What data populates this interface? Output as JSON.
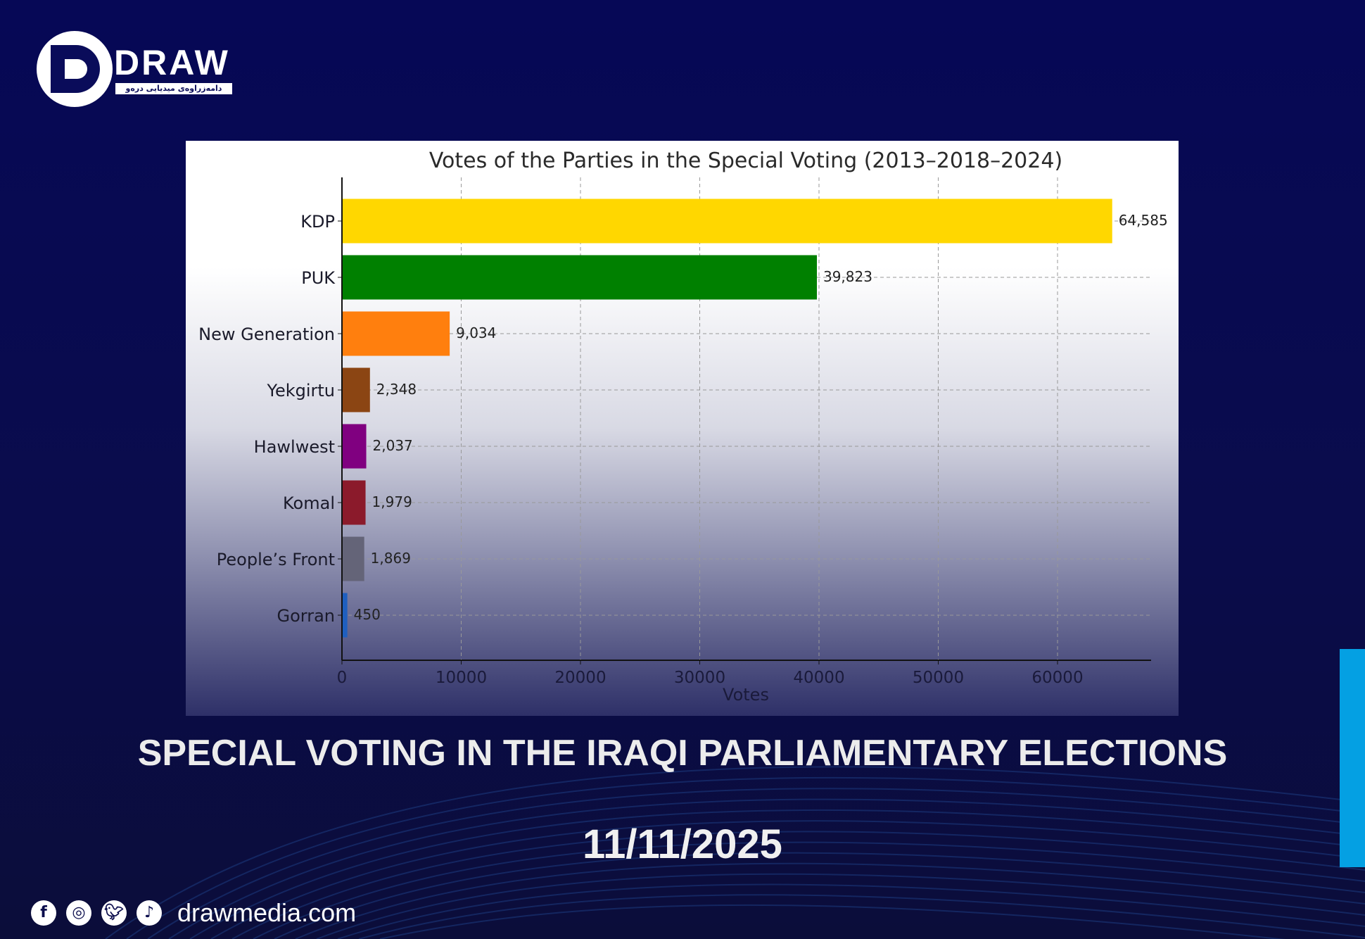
{
  "brand": {
    "logo_text": "DRAW",
    "logo_subtitle": "دامەزراوەی میدیایی درەو",
    "website": "drawmedia.com",
    "social_icons": [
      "facebook-icon",
      "instagram-icon",
      "twitter-icon",
      "tiktok-icon"
    ]
  },
  "headline": "SPECIAL VOTING IN THE IRAQI PARLIAMENTARY ELECTIONS",
  "date": "11/11/2025",
  "colors": {
    "background": "#060856",
    "accent": "#04a0e3"
  },
  "chart_data": {
    "type": "bar",
    "orientation": "horizontal",
    "title": "Votes of the Parties in the Special Voting (2013–2018–2024)",
    "xlabel": "Votes",
    "ylabel": "",
    "xlim": [
      0,
      68000
    ],
    "xticks": [
      "0",
      "10000",
      "20000",
      "30000",
      "40000",
      "50000",
      "60000"
    ],
    "grid": true,
    "categories": [
      "KDP",
      "PUK",
      "New Generation",
      "Yekgirtu",
      "Hawlwest",
      "Komal",
      "People’s Front",
      "Gorran"
    ],
    "values": [
      64585,
      39823,
      9034,
      2348,
      2037,
      1979,
      1869,
      450
    ],
    "data_labels": [
      "64,585",
      "39,823",
      "9,034",
      "2,348",
      "2,037",
      "1,979",
      "1,869",
      "450"
    ],
    "bar_colors": [
      "#ffd700",
      "#008000",
      "#ff7f0e",
      "#8b4513",
      "#800080",
      "#8b1a2b",
      "#646478",
      "#1f5fbf"
    ]
  }
}
